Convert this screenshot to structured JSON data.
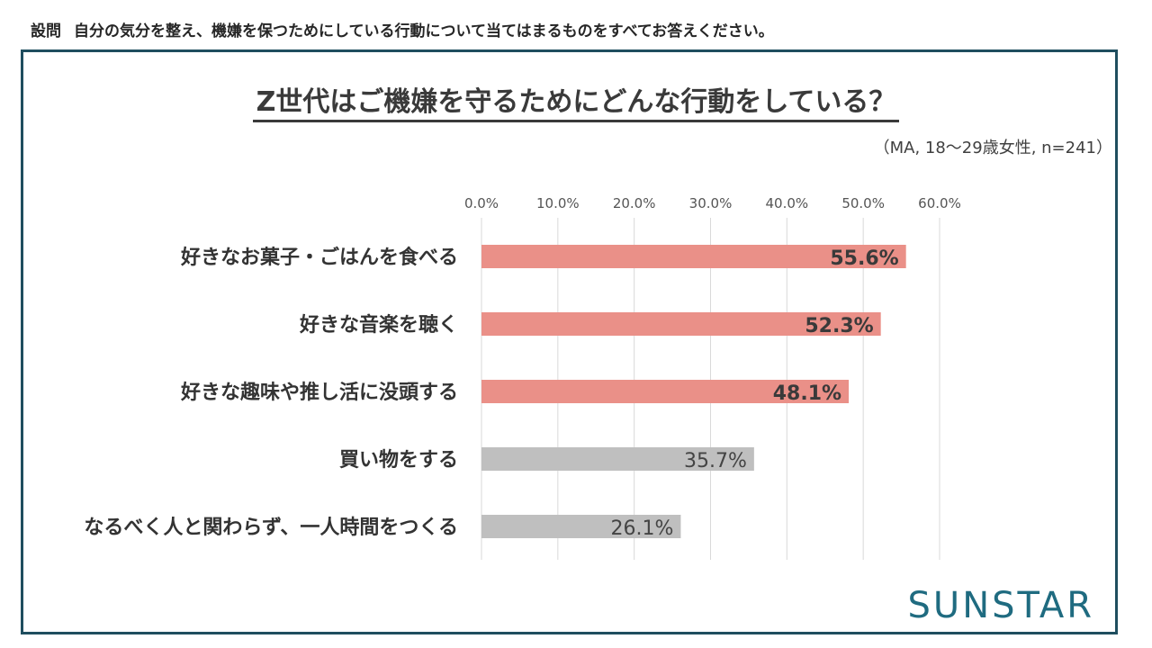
{
  "question": {
    "label": "設問",
    "text": "自分の気分を整え、機嫌を保つためにしている行動について当てはまるものをすべてお答えください。"
  },
  "title": "Z世代はご機嫌を守るためにどんな行動をしている？",
  "note": "（MA, 18～29歳女性, n=241）",
  "logo": "SUNSTAR",
  "colors": {
    "highlight": "#ea9088",
    "normal": "#bfbfbf",
    "frame": "#1f4e5f",
    "logo": "#1f6b80"
  },
  "chart_data": {
    "type": "bar",
    "orientation": "horizontal",
    "categories": [
      "好きなお菓子・ごはんを食べる",
      "好きな音楽を聴く",
      "好きな趣味や推し活に没頭する",
      "買い物をする",
      "なるべく人と関わらず、一人時間をつくる"
    ],
    "values": [
      55.6,
      52.3,
      48.1,
      35.7,
      26.1
    ],
    "value_labels": [
      "55.6%",
      "52.3%",
      "48.1%",
      "35.7%",
      "26.1%"
    ],
    "highlight": [
      true,
      true,
      true,
      false,
      false
    ],
    "xlim": [
      0,
      60
    ],
    "ticks": [
      0,
      10,
      20,
      30,
      40,
      50,
      60
    ],
    "tick_labels": [
      "0.0%",
      "10.0%",
      "20.0%",
      "30.0%",
      "40.0%",
      "50.0%",
      "60.0%"
    ],
    "grid": true,
    "axis_position": "top"
  }
}
